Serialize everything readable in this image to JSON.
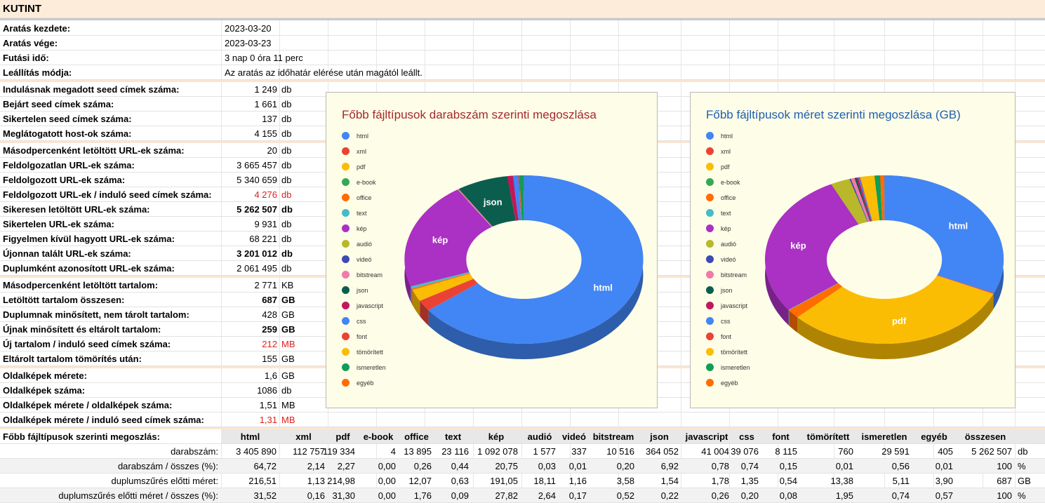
{
  "title": "KUTINT",
  "run": [
    {
      "label": "Aratás kezdete:",
      "value": "2023-03-20"
    },
    {
      "label": "Aratás vége:",
      "value": "2023-03-23"
    },
    {
      "label": "Futási idő:",
      "value": "3 nap 0 óra 11 perc"
    },
    {
      "label": "Leállítás módja:",
      "value": "Az aratás az időhatár elérése után magától leállt."
    }
  ],
  "seeds": [
    {
      "label": "Indulásnak megadott seed címek száma:",
      "value": "1 249",
      "unit": "db"
    },
    {
      "label": "Bejárt seed címek száma:",
      "value": "1 661",
      "unit": "db"
    },
    {
      "label": "Sikertelen seed címek száma:",
      "value": "137",
      "unit": "db"
    },
    {
      "label": "Meglátogatott host-ok száma:",
      "value": "4 155",
      "unit": "db"
    }
  ],
  "urls": [
    {
      "label": "Másodpercenként letöltött URL-ek száma:",
      "value": "20",
      "unit": "db"
    },
    {
      "label": "Feldolgozatlan URL-ek száma:",
      "value": "3 665 457",
      "unit": "db"
    },
    {
      "label": "Feldolgozott URL-ek száma:",
      "value": "5 340 659",
      "unit": "db"
    },
    {
      "label": "Feldolgozott URL-ek / induló seed címek száma:",
      "value": "4 276",
      "unit": "db",
      "red": true
    },
    {
      "label": "Sikeresen letöltött URL-ek száma:",
      "value": "5 262 507",
      "unit": "db",
      "bold": true
    },
    {
      "label": "Sikertelen URL-ek száma:",
      "value": "9 931",
      "unit": "db"
    },
    {
      "label": "Figyelmen kívül hagyott URL-ek száma:",
      "value": "68 221",
      "unit": "db"
    },
    {
      "label": "Újonnan talált URL-ek száma:",
      "value": "3 201 012",
      "unit": "db",
      "bold": true
    },
    {
      "label": "Duplumként azonosított URL-ek száma:",
      "value": "2 061 495",
      "unit": "db"
    }
  ],
  "content": [
    {
      "label": "Másodpercenként letöltött tartalom:",
      "value": "2 771",
      "unit": "KB"
    },
    {
      "label": "Letöltött tartalom összesen:",
      "value": "687",
      "unit": "GB",
      "bold": true
    },
    {
      "label": "Duplumnak minősített, nem tárolt tartalom:",
      "value": "428",
      "unit": "GB"
    },
    {
      "label": "Újnak minősített és eltárolt tartalom:",
      "value": "259",
      "unit": "GB",
      "bold": true
    },
    {
      "label": "Új tartalom / induló seed címek száma:",
      "value": "212",
      "unit": "MB",
      "red": true
    },
    {
      "label": "Eltárolt tartalom tömörítés után:",
      "value": "155",
      "unit": "GB"
    }
  ],
  "screenshots": [
    {
      "label": "Oldalképek mérete:",
      "value": "1,6",
      "unit": "GB"
    },
    {
      "label": "Oldalképek száma:",
      "value": "1086",
      "unit": "db"
    },
    {
      "label": "Oldalképek mérete  / oldalképek száma:",
      "value": "1,51",
      "unit": "MB"
    },
    {
      "label": "Oldalképek mérete  / induló seed címek száma:",
      "value": "1,31",
      "unit": "MB",
      "red": true
    }
  ],
  "table": {
    "label": "Főbb fájltípusok szerinti megoszlás:",
    "headers": [
      "html",
      "xml",
      "pdf",
      "e-book",
      "office",
      "text",
      "kép",
      "audió",
      "videó",
      "bitstream",
      "json",
      "javascript",
      "css",
      "font",
      "tömörített",
      "ismeretlen",
      "egyéb",
      "összesen"
    ],
    "rows": [
      {
        "label": "darabszám:",
        "values": [
          "3 405 890",
          "112 757",
          "119 334",
          "4",
          "13 895",
          "23 116",
          "1 092 078",
          "1 577",
          "337",
          "10 516",
          "364 052",
          "41 004",
          "39 076",
          "8 115",
          "760",
          "29 591",
          "405",
          "5 262 507"
        ],
        "unit": "db"
      },
      {
        "label": "darabszám / összes (%):",
        "values": [
          "64,72",
          "2,14",
          "2,27",
          "0,00",
          "0,26",
          "0,44",
          "20,75",
          "0,03",
          "0,01",
          "0,20",
          "6,92",
          "0,78",
          "0,74",
          "0,15",
          "0,01",
          "0,56",
          "0,01",
          "100"
        ],
        "unit": "%"
      },
      {
        "label": "duplumszűrés előtti méret:",
        "values": [
          "216,51",
          "1,13",
          "214,98",
          "0,00",
          "12,07",
          "0,63",
          "191,05",
          "18,11",
          "1,16",
          "3,58",
          "1,54",
          "1,78",
          "1,35",
          "0,54",
          "13,38",
          "5,11",
          "3,90",
          "687"
        ],
        "unit": "GB"
      },
      {
        "label": "duplumszűrés előtti méret / összes (%):",
        "values": [
          "31,52",
          "0,16",
          "31,30",
          "0,00",
          "1,76",
          "0,09",
          "27,82",
          "2,64",
          "0,17",
          "0,52",
          "0,22",
          "0,26",
          "0,20",
          "0,08",
          "1,95",
          "0,74",
          "0,57",
          "100"
        ],
        "unit": "%"
      }
    ]
  },
  "charts": [
    {
      "type": "pie",
      "title": "Főbb fájltípusok darabszám szerinti megoszlása",
      "title_color": "#a52a2a",
      "labels_shown": {
        "html": "html",
        "kép": "kép",
        "json": "json"
      },
      "chart_data": {
        "type": "pie",
        "categories": [
          "html",
          "xml",
          "pdf",
          "e-book",
          "office",
          "text",
          "kép",
          "audió",
          "videó",
          "bitstream",
          "json",
          "javascript",
          "css",
          "font",
          "tömörített",
          "ismeretlen",
          "egyéb"
        ],
        "values": [
          64.72,
          2.14,
          2.27,
          0.0,
          0.26,
          0.44,
          20.75,
          0.03,
          0.01,
          0.2,
          6.92,
          0.78,
          0.74,
          0.15,
          0.01,
          0.56,
          0.01
        ]
      }
    },
    {
      "type": "pie",
      "title": "Főbb fájltípusok méret szerinti megoszlása (GB)",
      "title_color": "#2060b0",
      "labels_shown": {
        "html": "html",
        "kép": "kép",
        "pdf": "pdf"
      },
      "chart_data": {
        "type": "pie",
        "categories": [
          "html",
          "xml",
          "pdf",
          "e-book",
          "office",
          "text",
          "kép",
          "audió",
          "videó",
          "bitstream",
          "json",
          "javascript",
          "css",
          "font",
          "tömörített",
          "ismeretlen",
          "egyéb"
        ],
        "values": [
          31.52,
          0.16,
          31.3,
          0.0,
          1.76,
          0.09,
          27.82,
          2.64,
          0.17,
          0.52,
          0.22,
          0.26,
          0.2,
          0.08,
          1.95,
          0.74,
          0.57
        ]
      }
    }
  ],
  "legend": [
    "html",
    "xml",
    "pdf",
    "e-book",
    "office",
    "text",
    "kép",
    "audió",
    "videó",
    "bitstream",
    "json",
    "javascript",
    "css",
    "font",
    "tömörített",
    "ismeretlen",
    "egyéb"
  ],
  "colors": [
    "#4285f4",
    "#ea4335",
    "#fbbc04",
    "#34a853",
    "#ff6d01",
    "#46bdc6",
    "#ab30c4",
    "#b8b82a",
    "#3f48b5",
    "#f07aa8",
    "#0b5e4e",
    "#c2185b",
    "#4285f4",
    "#ea4335",
    "#fbbc04",
    "#0f9d58",
    "#ff6d01"
  ]
}
